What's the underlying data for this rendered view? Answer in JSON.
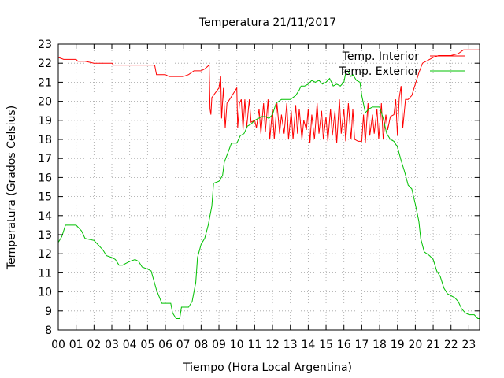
{
  "chart_data": {
    "type": "line",
    "title": "Temperatura 21/11/2017",
    "xlabel": "Tiempo (Hora Local Argentina)",
    "ylabel": "Temperatura (Grados Celsius)",
    "xlim": [
      0,
      23.6
    ],
    "ylim": [
      8,
      23
    ],
    "grid": true,
    "legend_position": "top-right",
    "x_tick_labels": [
      "00",
      "01",
      "02",
      "03",
      "04",
      "05",
      "06",
      "07",
      "08",
      "09",
      "10",
      "11",
      "12",
      "13",
      "14",
      "15",
      "16",
      "17",
      "18",
      "19",
      "20",
      "21",
      "22",
      "23"
    ],
    "y_tick_labels": [
      "8",
      "9",
      "10",
      "11",
      "12",
      "13",
      "14",
      "15",
      "16",
      "17",
      "18",
      "19",
      "20",
      "21",
      "22",
      "23"
    ],
    "series": [
      {
        "name": "Temp. Interior",
        "color": "#ff0000",
        "points": [
          [
            0,
            22.3
          ],
          [
            0.3,
            22.2
          ],
          [
            0.6,
            22.2
          ],
          [
            1.0,
            22.2
          ],
          [
            1.1,
            22.1
          ],
          [
            1.5,
            22.1
          ],
          [
            2.0,
            22.0
          ],
          [
            2.5,
            22.0
          ],
          [
            3.0,
            22.0
          ],
          [
            3.1,
            21.9
          ],
          [
            3.6,
            21.9
          ],
          [
            4.0,
            21.9
          ],
          [
            4.6,
            21.9
          ],
          [
            5.0,
            21.9
          ],
          [
            5.4,
            21.9
          ],
          [
            5.5,
            21.4
          ],
          [
            6.0,
            21.4
          ],
          [
            6.2,
            21.3
          ],
          [
            6.6,
            21.3
          ],
          [
            7.0,
            21.3
          ],
          [
            7.3,
            21.4
          ],
          [
            7.6,
            21.6
          ],
          [
            8.0,
            21.6
          ],
          [
            8.2,
            21.7
          ],
          [
            8.45,
            21.9
          ],
          [
            8.5,
            19.6
          ],
          [
            8.55,
            19.3
          ],
          [
            8.6,
            20.2
          ],
          [
            9.0,
            20.7
          ],
          [
            9.1,
            21.3
          ],
          [
            9.15,
            19.1
          ],
          [
            9.25,
            20.7
          ],
          [
            9.35,
            18.6
          ],
          [
            9.45,
            19.9
          ],
          [
            9.6,
            20.1
          ],
          [
            9.8,
            20.4
          ],
          [
            10.0,
            20.7
          ],
          [
            10.05,
            18.6
          ],
          [
            10.15,
            19.9
          ],
          [
            10.25,
            20.1
          ],
          [
            10.35,
            18.5
          ],
          [
            10.45,
            20.1
          ],
          [
            10.55,
            18.6
          ],
          [
            10.7,
            20.1
          ],
          [
            10.8,
            18.9
          ],
          [
            11.0,
            19.0
          ],
          [
            11.1,
            18.6
          ],
          [
            11.25,
            19.6
          ],
          [
            11.35,
            18.3
          ],
          [
            11.5,
            19.9
          ],
          [
            11.6,
            18.4
          ],
          [
            11.75,
            20.1
          ],
          [
            11.85,
            18.0
          ],
          [
            12.0,
            19.6
          ],
          [
            12.1,
            18.0
          ],
          [
            12.25,
            19.9
          ],
          [
            12.4,
            18.3
          ],
          [
            12.5,
            19.3
          ],
          [
            12.65,
            18.3
          ],
          [
            12.8,
            19.9
          ],
          [
            12.9,
            18.0
          ],
          [
            13.05,
            19.5
          ],
          [
            13.15,
            18.0
          ],
          [
            13.3,
            19.8
          ],
          [
            13.4,
            18.3
          ],
          [
            13.5,
            19.6
          ],
          [
            13.65,
            18.0
          ],
          [
            13.75,
            19.0
          ],
          [
            13.9,
            18.5
          ],
          [
            14.0,
            19.6
          ],
          [
            14.1,
            17.8
          ],
          [
            14.2,
            19.3
          ],
          [
            14.35,
            18.0
          ],
          [
            14.5,
            19.9
          ],
          [
            14.6,
            18.3
          ],
          [
            14.75,
            19.5
          ],
          [
            14.85,
            18.0
          ],
          [
            15.0,
            19.2
          ],
          [
            15.1,
            17.9
          ],
          [
            15.25,
            19.6
          ],
          [
            15.35,
            18.2
          ],
          [
            15.5,
            19.5
          ],
          [
            15.6,
            17.8
          ],
          [
            15.75,
            20.1
          ],
          [
            15.85,
            18.3
          ],
          [
            16.0,
            19.6
          ],
          [
            16.1,
            17.9
          ],
          [
            16.25,
            19.9
          ],
          [
            16.4,
            18.0
          ],
          [
            16.5,
            19.6
          ],
          [
            16.6,
            18.0
          ],
          [
            16.8,
            17.9
          ],
          [
            17.0,
            17.9
          ],
          [
            17.1,
            19.3
          ],
          [
            17.2,
            17.8
          ],
          [
            17.35,
            19.9
          ],
          [
            17.45,
            18.2
          ],
          [
            17.6,
            19.3
          ],
          [
            17.7,
            18.3
          ],
          [
            17.85,
            19.6
          ],
          [
            17.95,
            18.0
          ],
          [
            18.1,
            19.9
          ],
          [
            18.2,
            18.0
          ],
          [
            18.35,
            19.3
          ],
          [
            18.45,
            18.5
          ],
          [
            18.6,
            19.2
          ],
          [
            18.8,
            19.3
          ],
          [
            18.9,
            20.1
          ],
          [
            19.0,
            18.2
          ],
          [
            19.1,
            20.2
          ],
          [
            19.2,
            20.8
          ],
          [
            19.3,
            18.6
          ],
          [
            19.45,
            20.1
          ],
          [
            19.6,
            20.1
          ],
          [
            19.8,
            20.3
          ],
          [
            20.0,
            20.9
          ],
          [
            20.2,
            21.5
          ],
          [
            20.4,
            22.0
          ],
          [
            20.6,
            22.1
          ],
          [
            21.0,
            22.3
          ],
          [
            21.3,
            22.4
          ],
          [
            21.6,
            22.4
          ],
          [
            22.0,
            22.4
          ],
          [
            22.4,
            22.5
          ],
          [
            22.7,
            22.7
          ],
          [
            23.0,
            22.7
          ],
          [
            23.6,
            22.7
          ]
        ]
      },
      {
        "name": "Temp. Exterior",
        "color": "#00c000",
        "points": [
          [
            0,
            12.6
          ],
          [
            0.2,
            12.9
          ],
          [
            0.4,
            13.5
          ],
          [
            0.7,
            13.5
          ],
          [
            1.0,
            13.5
          ],
          [
            1.3,
            13.2
          ],
          [
            1.5,
            12.8
          ],
          [
            2.0,
            12.7
          ],
          [
            2.2,
            12.5
          ],
          [
            2.5,
            12.2
          ],
          [
            2.7,
            11.9
          ],
          [
            3.0,
            11.8
          ],
          [
            3.2,
            11.7
          ],
          [
            3.4,
            11.4
          ],
          [
            3.6,
            11.4
          ],
          [
            3.8,
            11.5
          ],
          [
            4.0,
            11.6
          ],
          [
            4.3,
            11.7
          ],
          [
            4.5,
            11.6
          ],
          [
            4.7,
            11.3
          ],
          [
            5.0,
            11.2
          ],
          [
            5.2,
            11.1
          ],
          [
            5.5,
            10.1
          ],
          [
            5.8,
            9.4
          ],
          [
            6.0,
            9.4
          ],
          [
            6.3,
            9.4
          ],
          [
            6.4,
            8.9
          ],
          [
            6.6,
            8.6
          ],
          [
            6.8,
            8.6
          ],
          [
            6.9,
            9.2
          ],
          [
            7.0,
            9.2
          ],
          [
            7.3,
            9.2
          ],
          [
            7.5,
            9.5
          ],
          [
            7.7,
            10.5
          ],
          [
            7.8,
            11.8
          ],
          [
            8.0,
            12.5
          ],
          [
            8.2,
            12.8
          ],
          [
            8.4,
            13.5
          ],
          [
            8.6,
            14.5
          ],
          [
            8.7,
            15.7
          ],
          [
            9.0,
            15.8
          ],
          [
            9.2,
            16.1
          ],
          [
            9.3,
            16.8
          ],
          [
            9.5,
            17.3
          ],
          [
            9.7,
            17.8
          ],
          [
            10.0,
            17.8
          ],
          [
            10.2,
            18.2
          ],
          [
            10.4,
            18.3
          ],
          [
            10.6,
            18.7
          ],
          [
            10.8,
            18.8
          ],
          [
            11.0,
            19.0
          ],
          [
            11.2,
            19.1
          ],
          [
            11.4,
            19.2
          ],
          [
            11.6,
            19.2
          ],
          [
            11.8,
            19.1
          ],
          [
            12.0,
            19.3
          ],
          [
            12.2,
            19.9
          ],
          [
            12.5,
            20.1
          ],
          [
            12.8,
            20.1
          ],
          [
            13.0,
            20.1
          ],
          [
            13.3,
            20.3
          ],
          [
            13.5,
            20.6
          ],
          [
            13.6,
            20.8
          ],
          [
            13.8,
            20.8
          ],
          [
            14.0,
            20.9
          ],
          [
            14.2,
            21.1
          ],
          [
            14.4,
            21.0
          ],
          [
            14.6,
            21.1
          ],
          [
            14.8,
            20.9
          ],
          [
            15.0,
            21.0
          ],
          [
            15.2,
            21.2
          ],
          [
            15.4,
            20.8
          ],
          [
            15.6,
            20.9
          ],
          [
            15.8,
            20.8
          ],
          [
            16.0,
            21.0
          ],
          [
            16.1,
            21.5
          ],
          [
            16.2,
            21.6
          ],
          [
            16.4,
            21.3
          ],
          [
            16.5,
            21.4
          ],
          [
            16.7,
            21.1
          ],
          [
            16.9,
            21.0
          ],
          [
            17.0,
            20.3
          ],
          [
            17.2,
            19.4
          ],
          [
            17.4,
            19.6
          ],
          [
            17.6,
            19.7
          ],
          [
            18.0,
            19.7
          ],
          [
            18.2,
            19.1
          ],
          [
            18.4,
            18.3
          ],
          [
            18.6,
            18.0
          ],
          [
            18.8,
            17.9
          ],
          [
            19.0,
            17.6
          ],
          [
            19.2,
            16.9
          ],
          [
            19.4,
            16.3
          ],
          [
            19.6,
            15.6
          ],
          [
            19.8,
            15.4
          ],
          [
            20.0,
            14.6
          ],
          [
            20.2,
            13.7
          ],
          [
            20.3,
            12.8
          ],
          [
            20.5,
            12.1
          ],
          [
            20.8,
            11.9
          ],
          [
            21.0,
            11.7
          ],
          [
            21.2,
            11.1
          ],
          [
            21.4,
            10.8
          ],
          [
            21.6,
            10.2
          ],
          [
            21.8,
            9.9
          ],
          [
            22.0,
            9.8
          ],
          [
            22.2,
            9.7
          ],
          [
            22.4,
            9.5
          ],
          [
            22.6,
            9.1
          ],
          [
            22.8,
            8.9
          ],
          [
            23.0,
            8.8
          ],
          [
            23.3,
            8.8
          ],
          [
            23.5,
            8.6
          ],
          [
            23.6,
            8.6
          ]
        ]
      }
    ]
  }
}
